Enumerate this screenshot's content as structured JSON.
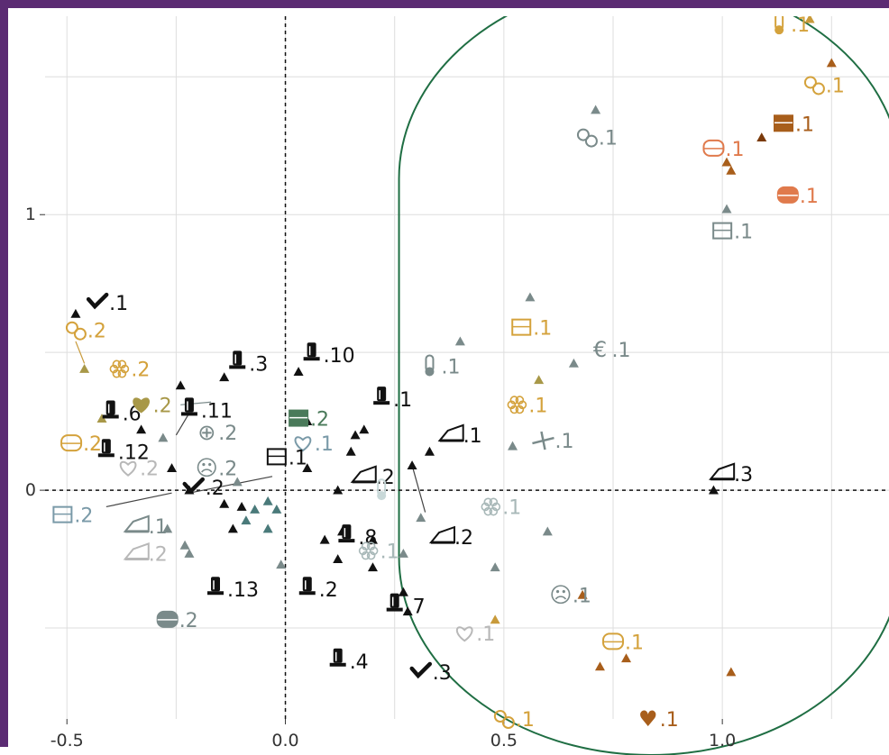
{
  "chart_data": {
    "type": "scatter",
    "title": "",
    "xlabel": "",
    "ylabel": "",
    "xlim": [
      -0.55,
      1.4
    ],
    "ylim": [
      -0.83,
      1.72
    ],
    "xticks": [
      "-0.5",
      "0.0",
      "0.5",
      "1.0"
    ],
    "yticks": [
      "0",
      "1"
    ],
    "grid": true,
    "colors": {
      "grid": "#dedede",
      "ellipse": "#1f6e43",
      "frame": "#5b2b73"
    },
    "labels": [
      {
        "text": ".1",
        "x": 1.13,
        "y": 1.69,
        "color": "#d4a23c",
        "icon": "bottle"
      },
      {
        "text": ".1",
        "x": 1.21,
        "y": 1.47,
        "color": "#d4a23c",
        "icon": "drumstick"
      },
      {
        "text": ".1",
        "x": 1.14,
        "y": 1.33,
        "color": "#a85e1b",
        "icon": "barrel"
      },
      {
        "text": ".1",
        "x": 0.69,
        "y": 1.28,
        "color": "#7a8a8a",
        "icon": "snail"
      },
      {
        "text": ".1",
        "x": 0.98,
        "y": 1.24,
        "color": "#e07a4c",
        "icon": "jar"
      },
      {
        "text": ".1",
        "x": 1.15,
        "y": 1.07,
        "color": "#e07a4c",
        "icon": "pot"
      },
      {
        "text": ".1",
        "x": 1.0,
        "y": 0.94,
        "color": "#7a8a8a",
        "icon": "van"
      },
      {
        "text": ".1",
        "x": -0.43,
        "y": 0.68,
        "color": "#111111",
        "icon": "check"
      },
      {
        "text": ".1",
        "x": 0.54,
        "y": 0.59,
        "color": "#d4a23c",
        "icon": "house"
      },
      {
        "text": ".2",
        "x": -0.48,
        "y": 0.58,
        "color": "#d4a23c",
        "icon": "pasta"
      },
      {
        "text": ".1",
        "x": 0.72,
        "y": 0.51,
        "color": "#7a8a8a",
        "icon": "€"
      },
      {
        "text": ".10",
        "x": 0.06,
        "y": 0.49,
        "color": "#111111",
        "icon": "tree"
      },
      {
        "text": ".3",
        "x": -0.11,
        "y": 0.46,
        "color": "#111111",
        "icon": "tree"
      },
      {
        "text": ".1",
        "x": 0.33,
        "y": 0.45,
        "color": "#7a8a8a",
        "icon": "thermometer"
      },
      {
        "text": ".2",
        "x": -0.38,
        "y": 0.44,
        "color": "#d4a23c",
        "icon": "flower"
      },
      {
        "text": ".1",
        "x": 0.22,
        "y": 0.33,
        "color": "#111111",
        "icon": "tree"
      },
      {
        "text": ".1",
        "x": 0.53,
        "y": 0.31,
        "color": "#d4a23c",
        "icon": "snowflake"
      },
      {
        "text": ".6",
        "x": -0.4,
        "y": 0.28,
        "color": "#111111",
        "icon": "tree"
      },
      {
        "text": ".2",
        "x": -0.33,
        "y": 0.31,
        "color": "#a89848",
        "icon": "heart"
      },
      {
        "text": ".11",
        "x": -0.22,
        "y": 0.29,
        "color": "#111111",
        "icon": "tree"
      },
      {
        "text": ".2",
        "x": 0.03,
        "y": 0.26,
        "color": "#4a7a5a",
        "icon": "crate"
      },
      {
        "text": ".2",
        "x": -0.18,
        "y": 0.21,
        "color": "#7a8a8a",
        "icon": "⊕"
      },
      {
        "text": ".1",
        "x": 0.38,
        "y": 0.2,
        "color": "#111111",
        "icon": "tent"
      },
      {
        "text": ".2",
        "x": -0.49,
        "y": 0.17,
        "color": "#d4a23c",
        "icon": "dome"
      },
      {
        "text": ".1",
        "x": 0.04,
        "y": 0.17,
        "color": "#7a9aa8",
        "icon": "heart-outline"
      },
      {
        "text": ".1",
        "x": 0.59,
        "y": 0.18,
        "color": "#7a8a8a",
        "icon": "plane"
      },
      {
        "text": ".12",
        "x": -0.41,
        "y": 0.14,
        "color": "#111111",
        "icon": "tree"
      },
      {
        "text": ".1",
        "x": -0.02,
        "y": 0.12,
        "color": "#111111",
        "icon": "car"
      },
      {
        "text": ".2",
        "x": -0.36,
        "y": 0.08,
        "color": "#b8b8b8",
        "icon": "cloud"
      },
      {
        "text": ".2",
        "x": -0.18,
        "y": 0.08,
        "color": "#7a8a8a",
        "icon": "☹"
      },
      {
        "text": ".3",
        "x": 1.0,
        "y": 0.06,
        "color": "#111111",
        "icon": "truck"
      },
      {
        "text": ".2",
        "x": 0.18,
        "y": 0.05,
        "color": "#111111",
        "icon": "tent"
      },
      {
        "text": ".2",
        "x": -0.21,
        "y": 0.01,
        "color": "#111111",
        "icon": "check"
      },
      {
        "text": ".2",
        "x": -0.51,
        "y": -0.09,
        "color": "#7a9aa8",
        "icon": "phone"
      },
      {
        "text": "",
        "x": 0.22,
        "y": 0.0,
        "color": "#c8d8d8",
        "icon": "thermometer"
      },
      {
        "text": ".2",
        "x": 0.36,
        "y": -0.17,
        "color": "#111111",
        "icon": "truck"
      },
      {
        "text": ".1",
        "x": 0.47,
        "y": -0.06,
        "color": "#a8b8b8",
        "icon": "snowflake"
      },
      {
        "text": ".8",
        "x": 0.14,
        "y": -0.17,
        "color": "#111111",
        "icon": "tree"
      },
      {
        "text": ".1",
        "x": -0.34,
        "y": -0.13,
        "color": "#7a8a8a",
        "icon": "tent"
      },
      {
        "text": ".2",
        "x": -0.34,
        "y": -0.23,
        "color": "#b8b8b8",
        "icon": "truck"
      },
      {
        "text": ".1",
        "x": 0.19,
        "y": -0.22,
        "color": "#a8b8b8",
        "icon": "snowflake"
      },
      {
        "text": ".13",
        "x": -0.16,
        "y": -0.36,
        "color": "#111111",
        "icon": "tree"
      },
      {
        "text": ".2",
        "x": 0.05,
        "y": -0.36,
        "color": "#111111",
        "icon": "tree"
      },
      {
        "text": ".7",
        "x": 0.25,
        "y": -0.42,
        "color": "#111111",
        "icon": "tree"
      },
      {
        "text": ".1",
        "x": 0.63,
        "y": -0.38,
        "color": "#7a8a8a",
        "icon": "☹"
      },
      {
        "text": ".2",
        "x": -0.27,
        "y": -0.47,
        "color": "#7a8a8a",
        "icon": "pot"
      },
      {
        "text": ".1",
        "x": 0.41,
        "y": -0.52,
        "color": "#b8b8b8",
        "icon": "cloud"
      },
      {
        "text": ".1",
        "x": 0.75,
        "y": -0.55,
        "color": "#d4a23c",
        "icon": "dome"
      },
      {
        "text": ".4",
        "x": 0.12,
        "y": -0.62,
        "color": "#111111",
        "icon": "tree"
      },
      {
        "text": ".3",
        "x": 0.31,
        "y": -0.66,
        "color": "#111111",
        "icon": "check"
      },
      {
        "text": ".1",
        "x": 0.5,
        "y": -0.83,
        "color": "#d4a23c",
        "icon": "pasta"
      },
      {
        "text": ".1",
        "x": 0.83,
        "y": -0.83,
        "color": "#a85e1b",
        "icon": "♥"
      },
      {
        "text": ".1",
        "x": 0.66,
        "y": -1.0,
        "color": "#a85e1b",
        "icon": "flower"
      },
      {
        "text": ".1",
        "x": 1.08,
        "y": -1.0,
        "color": "#a89848",
        "icon": "⊕"
      }
    ],
    "triangles": [
      {
        "x": 1.2,
        "y": 1.71,
        "color": "#c89a3a"
      },
      {
        "x": 1.25,
        "y": 1.55,
        "color": "#a85e1b"
      },
      {
        "x": 0.71,
        "y": 1.38,
        "color": "#7a8a8a"
      },
      {
        "x": 1.09,
        "y": 1.28,
        "color": "#7a3a0a"
      },
      {
        "x": 1.01,
        "y": 1.19,
        "color": "#a85e1b"
      },
      {
        "x": 1.02,
        "y": 1.16,
        "color": "#a85e1b"
      },
      {
        "x": 1.01,
        "y": 1.02,
        "color": "#7a8a8a"
      },
      {
        "x": 0.56,
        "y": 0.7,
        "color": "#7a8a8a"
      },
      {
        "x": 0.4,
        "y": 0.54,
        "color": "#7a8a8a"
      },
      {
        "x": 0.66,
        "y": 0.46,
        "color": "#7a8a8a"
      },
      {
        "x": 0.58,
        "y": 0.4,
        "color": "#a89848"
      },
      {
        "x": 0.52,
        "y": 0.16,
        "color": "#7a8a8a"
      },
      {
        "x": 0.98,
        "y": 0.0,
        "color": "#111111"
      },
      {
        "x": 0.6,
        "y": -0.15,
        "color": "#7a8a8a"
      },
      {
        "x": 0.48,
        "y": -0.28,
        "color": "#7a8a8a"
      },
      {
        "x": 0.68,
        "y": -0.38,
        "color": "#a85e1b"
      },
      {
        "x": 0.48,
        "y": -0.47,
        "color": "#c89a3a"
      },
      {
        "x": 0.72,
        "y": -0.64,
        "color": "#a85e1b"
      },
      {
        "x": 0.78,
        "y": -0.61,
        "color": "#a85e1b"
      },
      {
        "x": 1.02,
        "y": -0.66,
        "color": "#a85e1b"
      },
      {
        "x": -0.48,
        "y": 0.64,
        "color": "#111111"
      },
      {
        "x": -0.46,
        "y": 0.44,
        "color": "#a89848"
      },
      {
        "x": -0.42,
        "y": 0.26,
        "color": "#a89848"
      },
      {
        "x": -0.33,
        "y": 0.22,
        "color": "#111111"
      },
      {
        "x": -0.24,
        "y": 0.38,
        "color": "#111111"
      },
      {
        "x": -0.14,
        "y": 0.41,
        "color": "#111111"
      },
      {
        "x": -0.28,
        "y": 0.19,
        "color": "#7a8a8a"
      },
      {
        "x": -0.26,
        "y": 0.08,
        "color": "#111111"
      },
      {
        "x": -0.11,
        "y": 0.03,
        "color": "#7a8a8a"
      },
      {
        "x": -0.22,
        "y": 0.0,
        "color": "#111111"
      },
      {
        "x": -0.14,
        "y": -0.05,
        "color": "#111111"
      },
      {
        "x": -0.1,
        "y": -0.06,
        "color": "#111111"
      },
      {
        "x": -0.07,
        "y": -0.07,
        "color": "#4a7a7a"
      },
      {
        "x": -0.04,
        "y": -0.04,
        "color": "#4a7a7a"
      },
      {
        "x": -0.02,
        "y": -0.07,
        "color": "#4a7a7a"
      },
      {
        "x": -0.09,
        "y": -0.11,
        "color": "#4a7a7a"
      },
      {
        "x": -0.04,
        "y": -0.14,
        "color": "#4a7a7a"
      },
      {
        "x": -0.12,
        "y": -0.14,
        "color": "#111111"
      },
      {
        "x": -0.27,
        "y": -0.14,
        "color": "#7a8a8a"
      },
      {
        "x": -0.23,
        "y": -0.2,
        "color": "#7a8a8a"
      },
      {
        "x": -0.22,
        "y": -0.23,
        "color": "#7a8a8a"
      },
      {
        "x": 0.05,
        "y": 0.25,
        "color": "#111111"
      },
      {
        "x": 0.16,
        "y": 0.2,
        "color": "#111111"
      },
      {
        "x": 0.18,
        "y": 0.22,
        "color": "#111111"
      },
      {
        "x": 0.15,
        "y": 0.14,
        "color": "#111111"
      },
      {
        "x": 0.12,
        "y": 0.0,
        "color": "#111111"
      },
      {
        "x": 0.05,
        "y": 0.08,
        "color": "#111111"
      },
      {
        "x": 0.29,
        "y": 0.09,
        "color": "#111111"
      },
      {
        "x": 0.33,
        "y": 0.14,
        "color": "#111111"
      },
      {
        "x": 0.31,
        "y": -0.1,
        "color": "#7a8a8a"
      },
      {
        "x": 0.13,
        "y": -0.15,
        "color": "#111111"
      },
      {
        "x": 0.2,
        "y": -0.18,
        "color": "#111111"
      },
      {
        "x": 0.2,
        "y": -0.28,
        "color": "#111111"
      },
      {
        "x": 0.27,
        "y": -0.23,
        "color": "#7a8a8a"
      },
      {
        "x": 0.27,
        "y": -0.37,
        "color": "#111111"
      },
      {
        "x": 0.12,
        "y": -0.25,
        "color": "#111111"
      },
      {
        "x": 0.09,
        "y": -0.18,
        "color": "#111111"
      },
      {
        "x": -0.01,
        "y": -0.27,
        "color": "#7a8a8a"
      },
      {
        "x": 0.03,
        "y": 0.43,
        "color": "#111111"
      },
      {
        "x": 0.28,
        "y": -0.44,
        "color": "#111111"
      }
    ],
    "connectors": [
      {
        "x1": -0.48,
        "y1": 0.54,
        "x2": -0.46,
        "y2": 0.46,
        "color": "#c89a3a"
      },
      {
        "x1": -0.41,
        "y1": -0.06,
        "x2": -0.26,
        "y2": -0.01,
        "color": "#444444"
      },
      {
        "x1": -0.22,
        "y1": 0.28,
        "x2": -0.25,
        "y2": 0.2,
        "color": "#444444"
      },
      {
        "x1": -0.22,
        "y1": -0.01,
        "x2": -0.03,
        "y2": 0.05,
        "color": "#444444"
      },
      {
        "x1": 0.29,
        "y1": 0.09,
        "x2": 0.32,
        "y2": -0.08,
        "color": "#444444"
      },
      {
        "x1": -0.24,
        "y1": 0.31,
        "x2": -0.17,
        "y2": 0.32,
        "color": "#7a8a8a"
      }
    ],
    "ellipse": {
      "x_left": 0.26,
      "x_right": 1.41,
      "y_top": 1.72,
      "y_bottom": -0.83,
      "corner_radius_x": 0.57,
      "corner_radius_y": 0.4
    }
  }
}
